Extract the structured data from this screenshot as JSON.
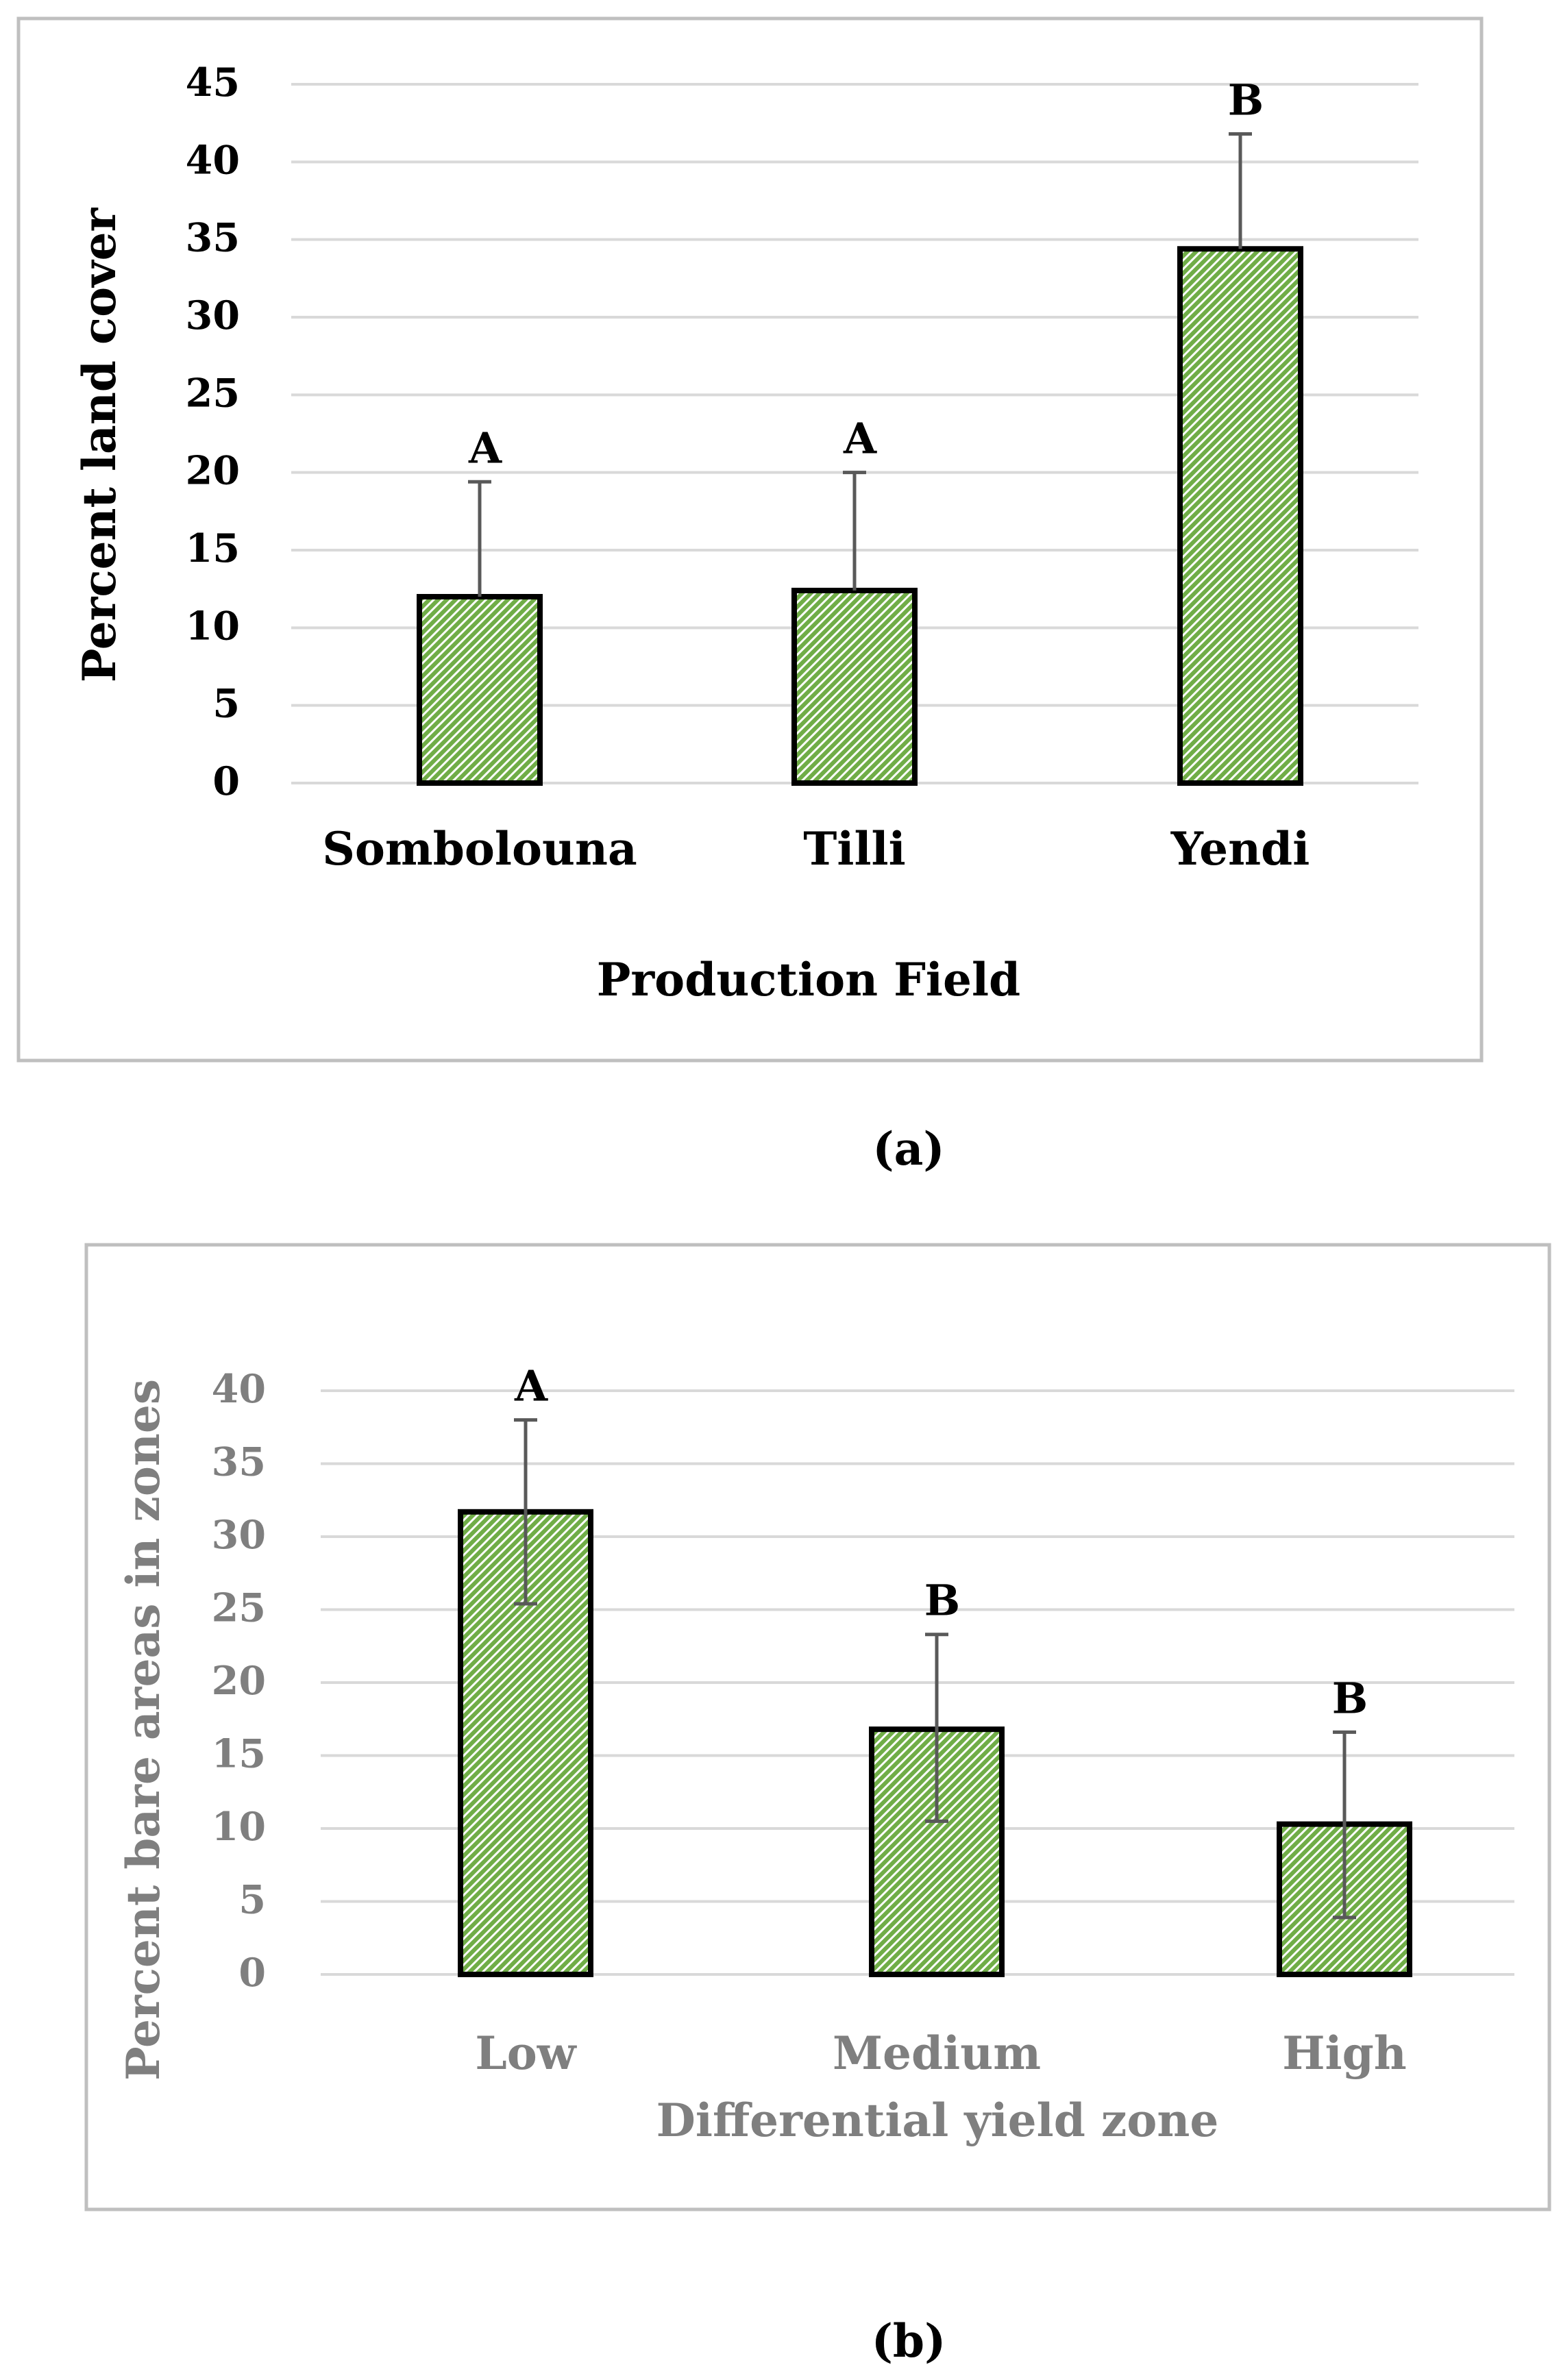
{
  "figure": {
    "caption_a": "(a)",
    "caption_b": "(b)"
  },
  "colors": {
    "bar_fill": "#70ad47",
    "bar_stripe": "#ffffff",
    "bar_edge": "#000000",
    "error_bar": "#595959",
    "grid": "#d9d9d9",
    "text_a": "#000000",
    "text_b": "#7f7f7f"
  },
  "chart_data": [
    {
      "type": "bar",
      "panel": "a",
      "title": "",
      "categories": [
        "Sombolouna",
        "Tilli",
        "Yendi"
      ],
      "values": [
        12,
        12.4,
        34.4
      ],
      "error_plus": [
        7.4,
        7.6,
        7.4
      ],
      "significance_letters": [
        "A",
        "A",
        "B"
      ],
      "xlabel": "Production Field",
      "ylabel": "Percent land cover",
      "ylim": [
        0,
        45
      ],
      "yticks": [
        0,
        5,
        10,
        15,
        20,
        25,
        30,
        35,
        40,
        45
      ],
      "grid": true,
      "legend": "none"
    },
    {
      "type": "bar",
      "panel": "b",
      "title": "",
      "categories": [
        "Low",
        "Medium",
        "High"
      ],
      "values": [
        31.7,
        16.8,
        10.3
      ],
      "error_minus": [
        6.3,
        6.3,
        6.4
      ],
      "error_plus": [
        6.3,
        6.5,
        6.3
      ],
      "significance_letters": [
        "A",
        "B",
        "B"
      ],
      "xlabel": "Differential yield zone",
      "ylabel": "Percent bare areas in zones",
      "ylim": [
        0,
        40
      ],
      "yticks": [
        0,
        5,
        10,
        15,
        20,
        25,
        30,
        35,
        40
      ],
      "grid": true,
      "legend": "none"
    }
  ]
}
